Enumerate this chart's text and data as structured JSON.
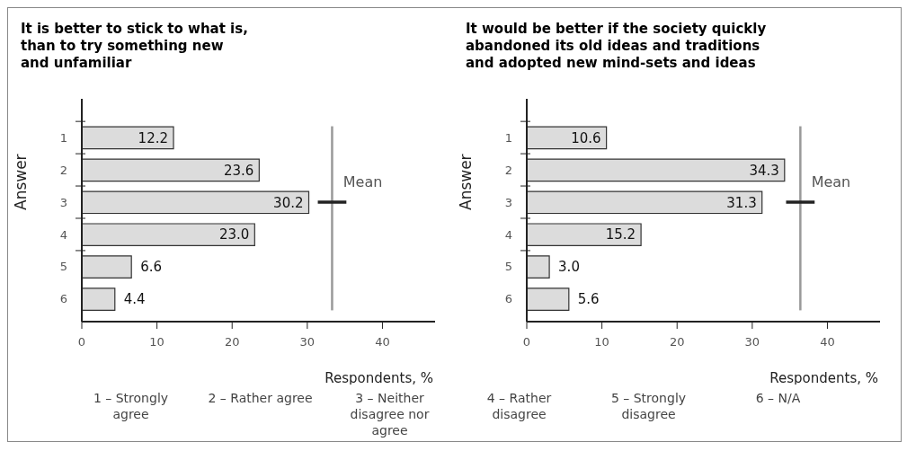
{
  "chart_data": [
    {
      "type": "bar",
      "orientation": "horizontal",
      "title": "It is better to stick to what is,\nthan to try something new\nand unfamiliar",
      "xlabel": "Respondents, %",
      "ylabel": "Answer",
      "categories": [
        "1",
        "2",
        "3",
        "4",
        "5",
        "6"
      ],
      "values": [
        12.2,
        23.6,
        30.2,
        23.0,
        6.6,
        4.4
      ],
      "value_labels": [
        "12.2",
        "23.6",
        "30.2",
        "23.0",
        "6.6",
        "4.4"
      ],
      "color": "#dcdcdc",
      "xlim": [
        0,
        47
      ],
      "xticks": [
        0,
        10,
        20,
        30,
        40
      ],
      "ref_lines": [
        {
          "axis": "x",
          "value": 33.3,
          "color": "#999999"
        }
      ],
      "annotations": [
        {
          "text": "Mean",
          "x": 33.3,
          "y": "3"
        }
      ]
    },
    {
      "type": "bar",
      "orientation": "horizontal",
      "title": "It would be better if the society quickly\nabandoned its old ideas and traditions\nand adopted new mind-sets and ideas",
      "xlabel": "Respondents, %",
      "ylabel": "Answer",
      "categories": [
        "1",
        "2",
        "3",
        "4",
        "5",
        "6"
      ],
      "values": [
        10.6,
        34.3,
        31.3,
        15.2,
        3.0,
        5.6
      ],
      "value_labels": [
        "10.6",
        "34.3",
        "31.3",
        "15.2",
        "3.0",
        "5.6"
      ],
      "color": "#dcdcdc",
      "xlim": [
        0,
        47
      ],
      "xticks": [
        0,
        10,
        20,
        30,
        40
      ],
      "ref_lines": [
        {
          "axis": "x",
          "value": 36.4,
          "color": "#999999"
        }
      ],
      "annotations": [
        {
          "text": "Mean",
          "x": 36.4,
          "y": "3"
        }
      ]
    },
    {
      "type": "other",
      "annotations": [
        "1 – Strongly agree",
        "2 – Rather agree",
        "3 – Neither disagree nor agree",
        "4 – Rather disagree",
        "5 – Strongly disagree",
        "6 – N/A"
      ]
    }
  ]
}
